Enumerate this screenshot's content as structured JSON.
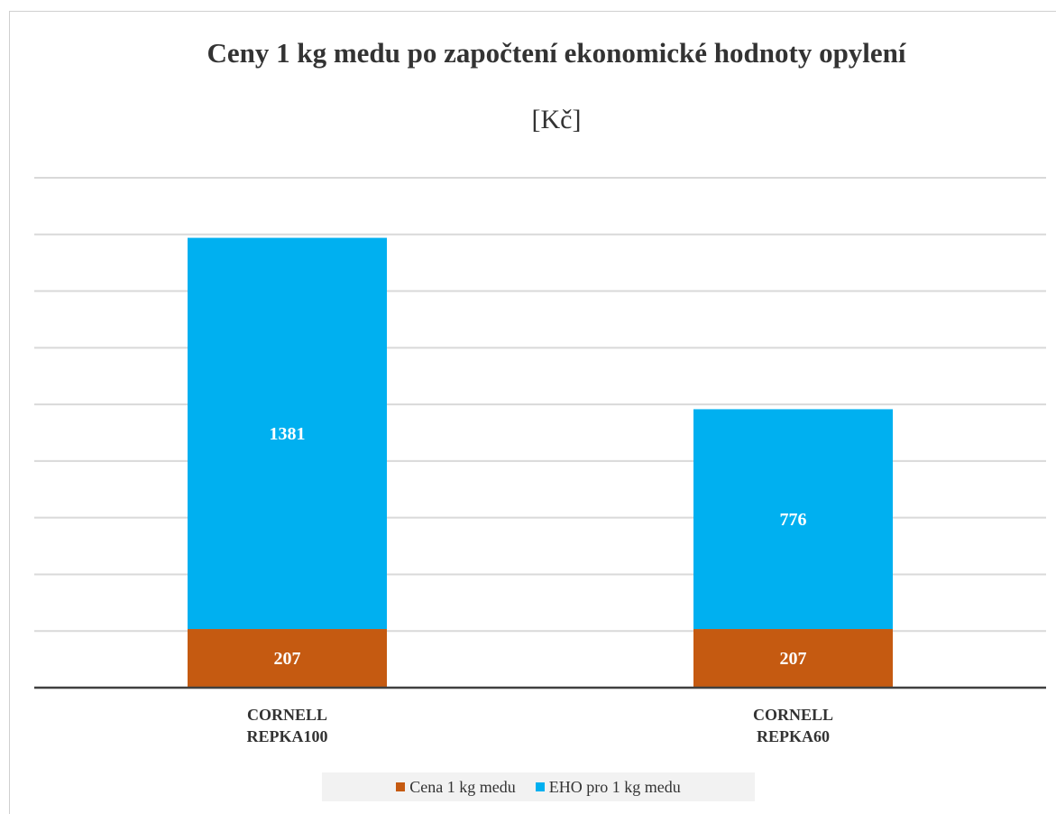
{
  "chart_data": {
    "type": "stacked_bar",
    "title": "Ceny 1 kg medu po započtení ekonomické hodnoty opylení",
    "subtitle": "[Kč]",
    "categories": [
      "CORNELL REPKA100",
      "CORNELL REPKA60"
    ],
    "series": [
      {
        "name": "Cena 1 kg medu",
        "color": "#c55a11",
        "values": [
          207,
          207
        ]
      },
      {
        "name": "EHO pro 1 kg medu",
        "color": "#00b0f0",
        "values": [
          1381,
          776
        ]
      }
    ],
    "ylim": [
      0,
      1800
    ],
    "yticks": [
      0,
      200,
      400,
      600,
      800,
      1000,
      1200,
      1400,
      1600,
      1800
    ],
    "grid": true,
    "legend": "bottom"
  }
}
